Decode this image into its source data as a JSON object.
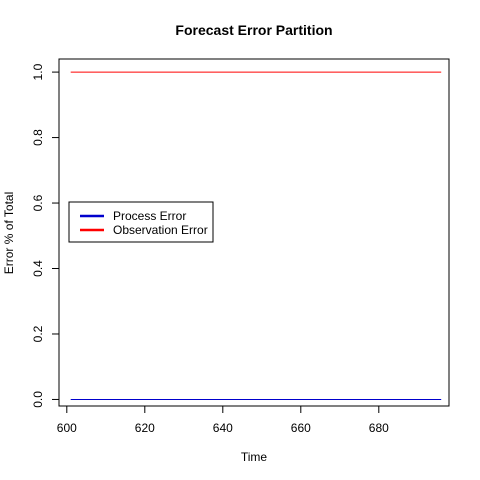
{
  "chart_data": {
    "type": "line",
    "title": "Forecast Error Partition",
    "xlabel": "Time",
    "ylabel": "Error % of Total",
    "xlim": [
      598,
      698
    ],
    "ylim": [
      -0.02,
      1.04
    ],
    "x_ticks": [
      600,
      620,
      640,
      660,
      680
    ],
    "y_ticks": [
      0.0,
      0.2,
      0.4,
      0.6,
      0.8,
      1.0
    ],
    "x_tick_labels": [
      "600",
      "620",
      "640",
      "660",
      "680"
    ],
    "y_tick_labels": [
      "0.0",
      "0.2",
      "0.4",
      "0.6",
      "0.8",
      "1.0"
    ],
    "legend_position": "middle-left",
    "grid": false,
    "series": [
      {
        "name": "Process Error",
        "color": "#0000cd",
        "x": [
          601,
          696
        ],
        "y": [
          0.0,
          0.0
        ]
      },
      {
        "name": "Observation Error",
        "color": "#ff0000",
        "x": [
          601,
          696
        ],
        "y": [
          1.0,
          1.0
        ]
      }
    ]
  }
}
